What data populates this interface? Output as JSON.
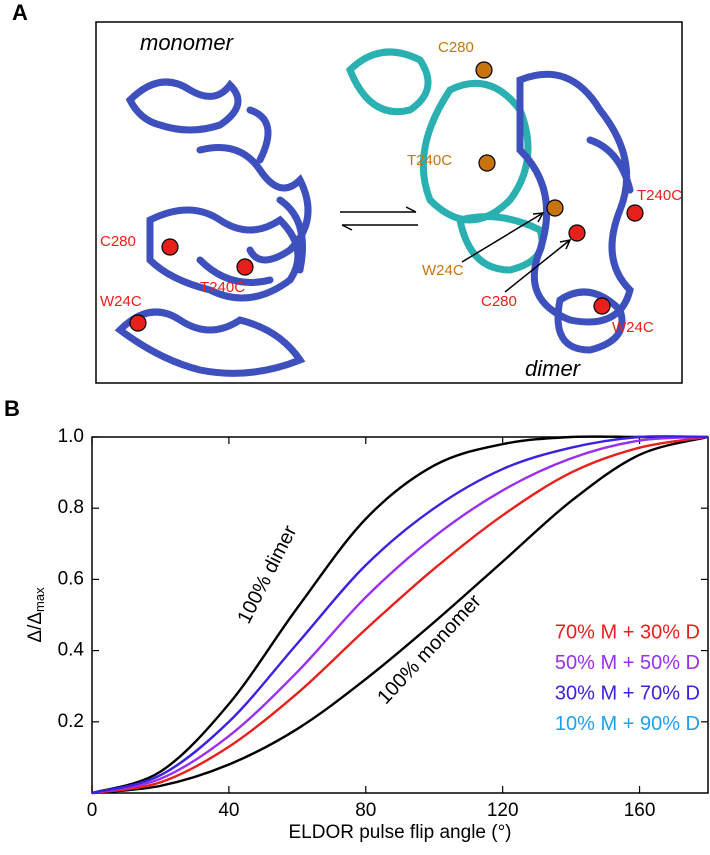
{
  "panel_a": {
    "panel_label": "A",
    "labels": [
      {
        "text": "monomer",
        "color": "#000000"
      },
      {
        "text": "dimer",
        "color": "#000000"
      },
      {
        "text": "C280",
        "color": "#e8201c"
      },
      {
        "text": "T240C",
        "color": "#e8201c"
      },
      {
        "text": "W24C",
        "color": "#e8201c"
      },
      {
        "text": "T240C",
        "color": "#e8201c"
      },
      {
        "text": "C280",
        "color": "#e8201c"
      },
      {
        "text": "W24C",
        "color": "#e8201c"
      },
      {
        "text": "C280",
        "color": "#c8740e"
      },
      {
        "text": "T240C",
        "color": "#c8740e"
      },
      {
        "text": "W24C",
        "color": "#c8740e"
      }
    ]
  },
  "chart_data": {
    "type": "line",
    "panel_label": "B",
    "xlabel": "ELDOR pulse flip angle (°)",
    "ylabel": "Δ/Δ",
    "ylabel_sub": "max",
    "x": [
      0,
      20,
      40,
      60,
      80,
      100,
      120,
      140,
      160,
      180
    ],
    "xlim": [
      0,
      180
    ],
    "xticks": [
      0,
      40,
      80,
      120,
      160
    ],
    "ylim": [
      0,
      1
    ],
    "yticks": [
      0.2,
      0.4,
      0.6,
      0.8,
      {
        "value": 1,
        "label": "1.0"
      }
    ],
    "series": [
      {
        "name": "100% dimer",
        "color": "#000000",
        "values": [
          0,
          0.06,
          0.25,
          0.52,
          0.77,
          0.92,
          0.98,
          1,
          1,
          1
        ]
      },
      {
        "name": "100% monomer",
        "color": "#000000",
        "values": [
          0,
          0.02,
          0.08,
          0.18,
          0.32,
          0.48,
          0.65,
          0.82,
          0.95,
          1
        ]
      },
      {
        "name": "70% M + 30% D",
        "color": "#e8201c",
        "values": [
          0,
          0.03,
          0.13,
          0.28,
          0.46,
          0.63,
          0.78,
          0.9,
          0.97,
          1
        ]
      },
      {
        "name": "50% M + 50% D",
        "color": "#9b2ff0",
        "values": [
          0,
          0.04,
          0.16,
          0.34,
          0.55,
          0.72,
          0.85,
          0.94,
          0.99,
          1
        ]
      },
      {
        "name": "30% M + 70% D",
        "color": "#3a22e0",
        "values": [
          0,
          0.05,
          0.2,
          0.42,
          0.64,
          0.8,
          0.91,
          0.97,
          1,
          1
        ]
      },
      {
        "name": "10% M + 90% D",
        "color": "#1e9ff0",
        "values": [
          null,
          null,
          null,
          null,
          null,
          null,
          null,
          null,
          null,
          null
        ]
      }
    ]
  }
}
